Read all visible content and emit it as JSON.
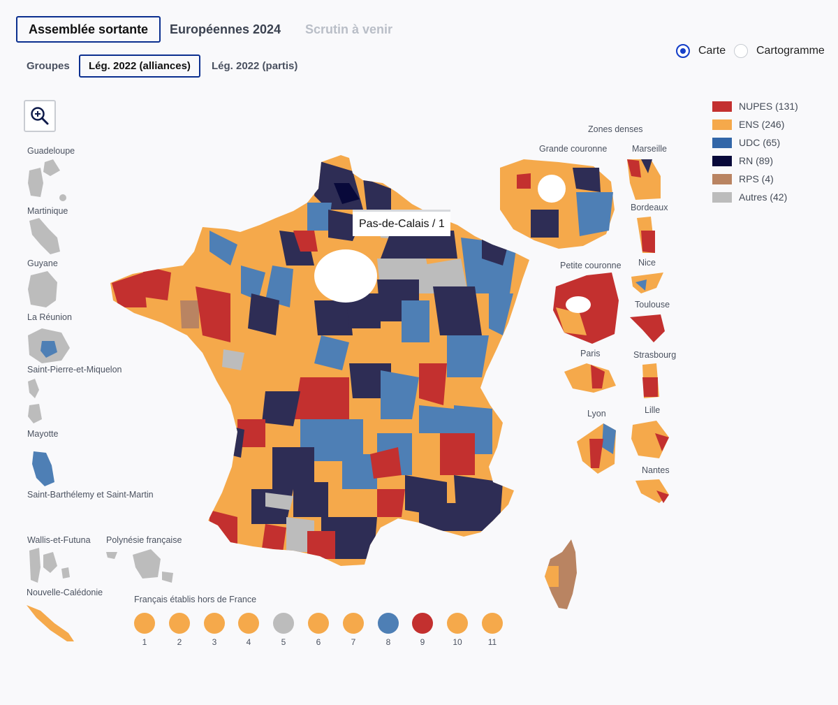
{
  "tabs_main": [
    {
      "label": "Assemblée sortante",
      "state": "active"
    },
    {
      "label": "Européennes 2024",
      "state": "inactive"
    },
    {
      "label": "Scrutin à venir",
      "state": "disabled"
    }
  ],
  "tabs_sub": [
    {
      "label": "Groupes",
      "state": "inactive"
    },
    {
      "label": "Lég. 2022 (alliances)",
      "state": "active"
    },
    {
      "label": "Lég. 2022 (partis)",
      "state": "inactive"
    }
  ],
  "view_toggle": {
    "carte": "Carte",
    "cartogramme": "Cartogramme",
    "selected": "Carte"
  },
  "zoom_button": {
    "icon": "zoom-in-icon"
  },
  "colors": {
    "NUPES": "#c3302f",
    "ENS": "#f5a94b",
    "UDC": "#4e7fb5",
    "RN": "#2e2d55",
    "RPS": "#b98462",
    "Autres": "#bcbcbc"
  },
  "legend": [
    {
      "key": "NUPES",
      "label": "NUPES (131)"
    },
    {
      "key": "ENS",
      "label": "ENS (246)"
    },
    {
      "key": "UDC",
      "label": "UDC (65)"
    },
    {
      "key": "RN",
      "label": "RN (89)"
    },
    {
      "key": "RPS",
      "label": "RPS (4)"
    },
    {
      "key": "Autres",
      "label": "Autres (42)"
    }
  ],
  "overseas": {
    "guadeloupe": "Guadeloupe",
    "martinique": "Martinique",
    "guyane": "Guyane",
    "reunion": "La Réunion",
    "spm": "Saint-Pierre-et-Miquelon",
    "mayotte": "Mayotte",
    "sbsm": "Saint-Barthélemy et Saint-Martin",
    "wallis": "Wallis-et-Futuna",
    "polynesie": "Polynésie française",
    "caledonie": "Nouvelle-Calédonie"
  },
  "dense_zones": {
    "title": "Zones denses",
    "grande_couronne": "Grande couronne",
    "marseille": "Marseille",
    "bordeaux": "Bordeaux",
    "petite_couronne": "Petite couronne",
    "nice": "Nice",
    "toulouse": "Toulouse",
    "paris": "Paris",
    "strasbourg": "Strasbourg",
    "lyon": "Lyon",
    "lille": "Lille",
    "nantes": "Nantes"
  },
  "tooltip": "Pas-de-Calais / 1",
  "abroad": {
    "title": "Français établis hors de France",
    "circonscriptions": [
      {
        "num": "1",
        "party": "ENS"
      },
      {
        "num": "2",
        "party": "ENS"
      },
      {
        "num": "3",
        "party": "ENS"
      },
      {
        "num": "4",
        "party": "ENS"
      },
      {
        "num": "5",
        "party": "Autres"
      },
      {
        "num": "6",
        "party": "ENS"
      },
      {
        "num": "7",
        "party": "ENS"
      },
      {
        "num": "8",
        "party": "UDC"
      },
      {
        "num": "9",
        "party": "NUPES"
      },
      {
        "num": "10",
        "party": "ENS"
      },
      {
        "num": "11",
        "party": "ENS"
      }
    ]
  }
}
